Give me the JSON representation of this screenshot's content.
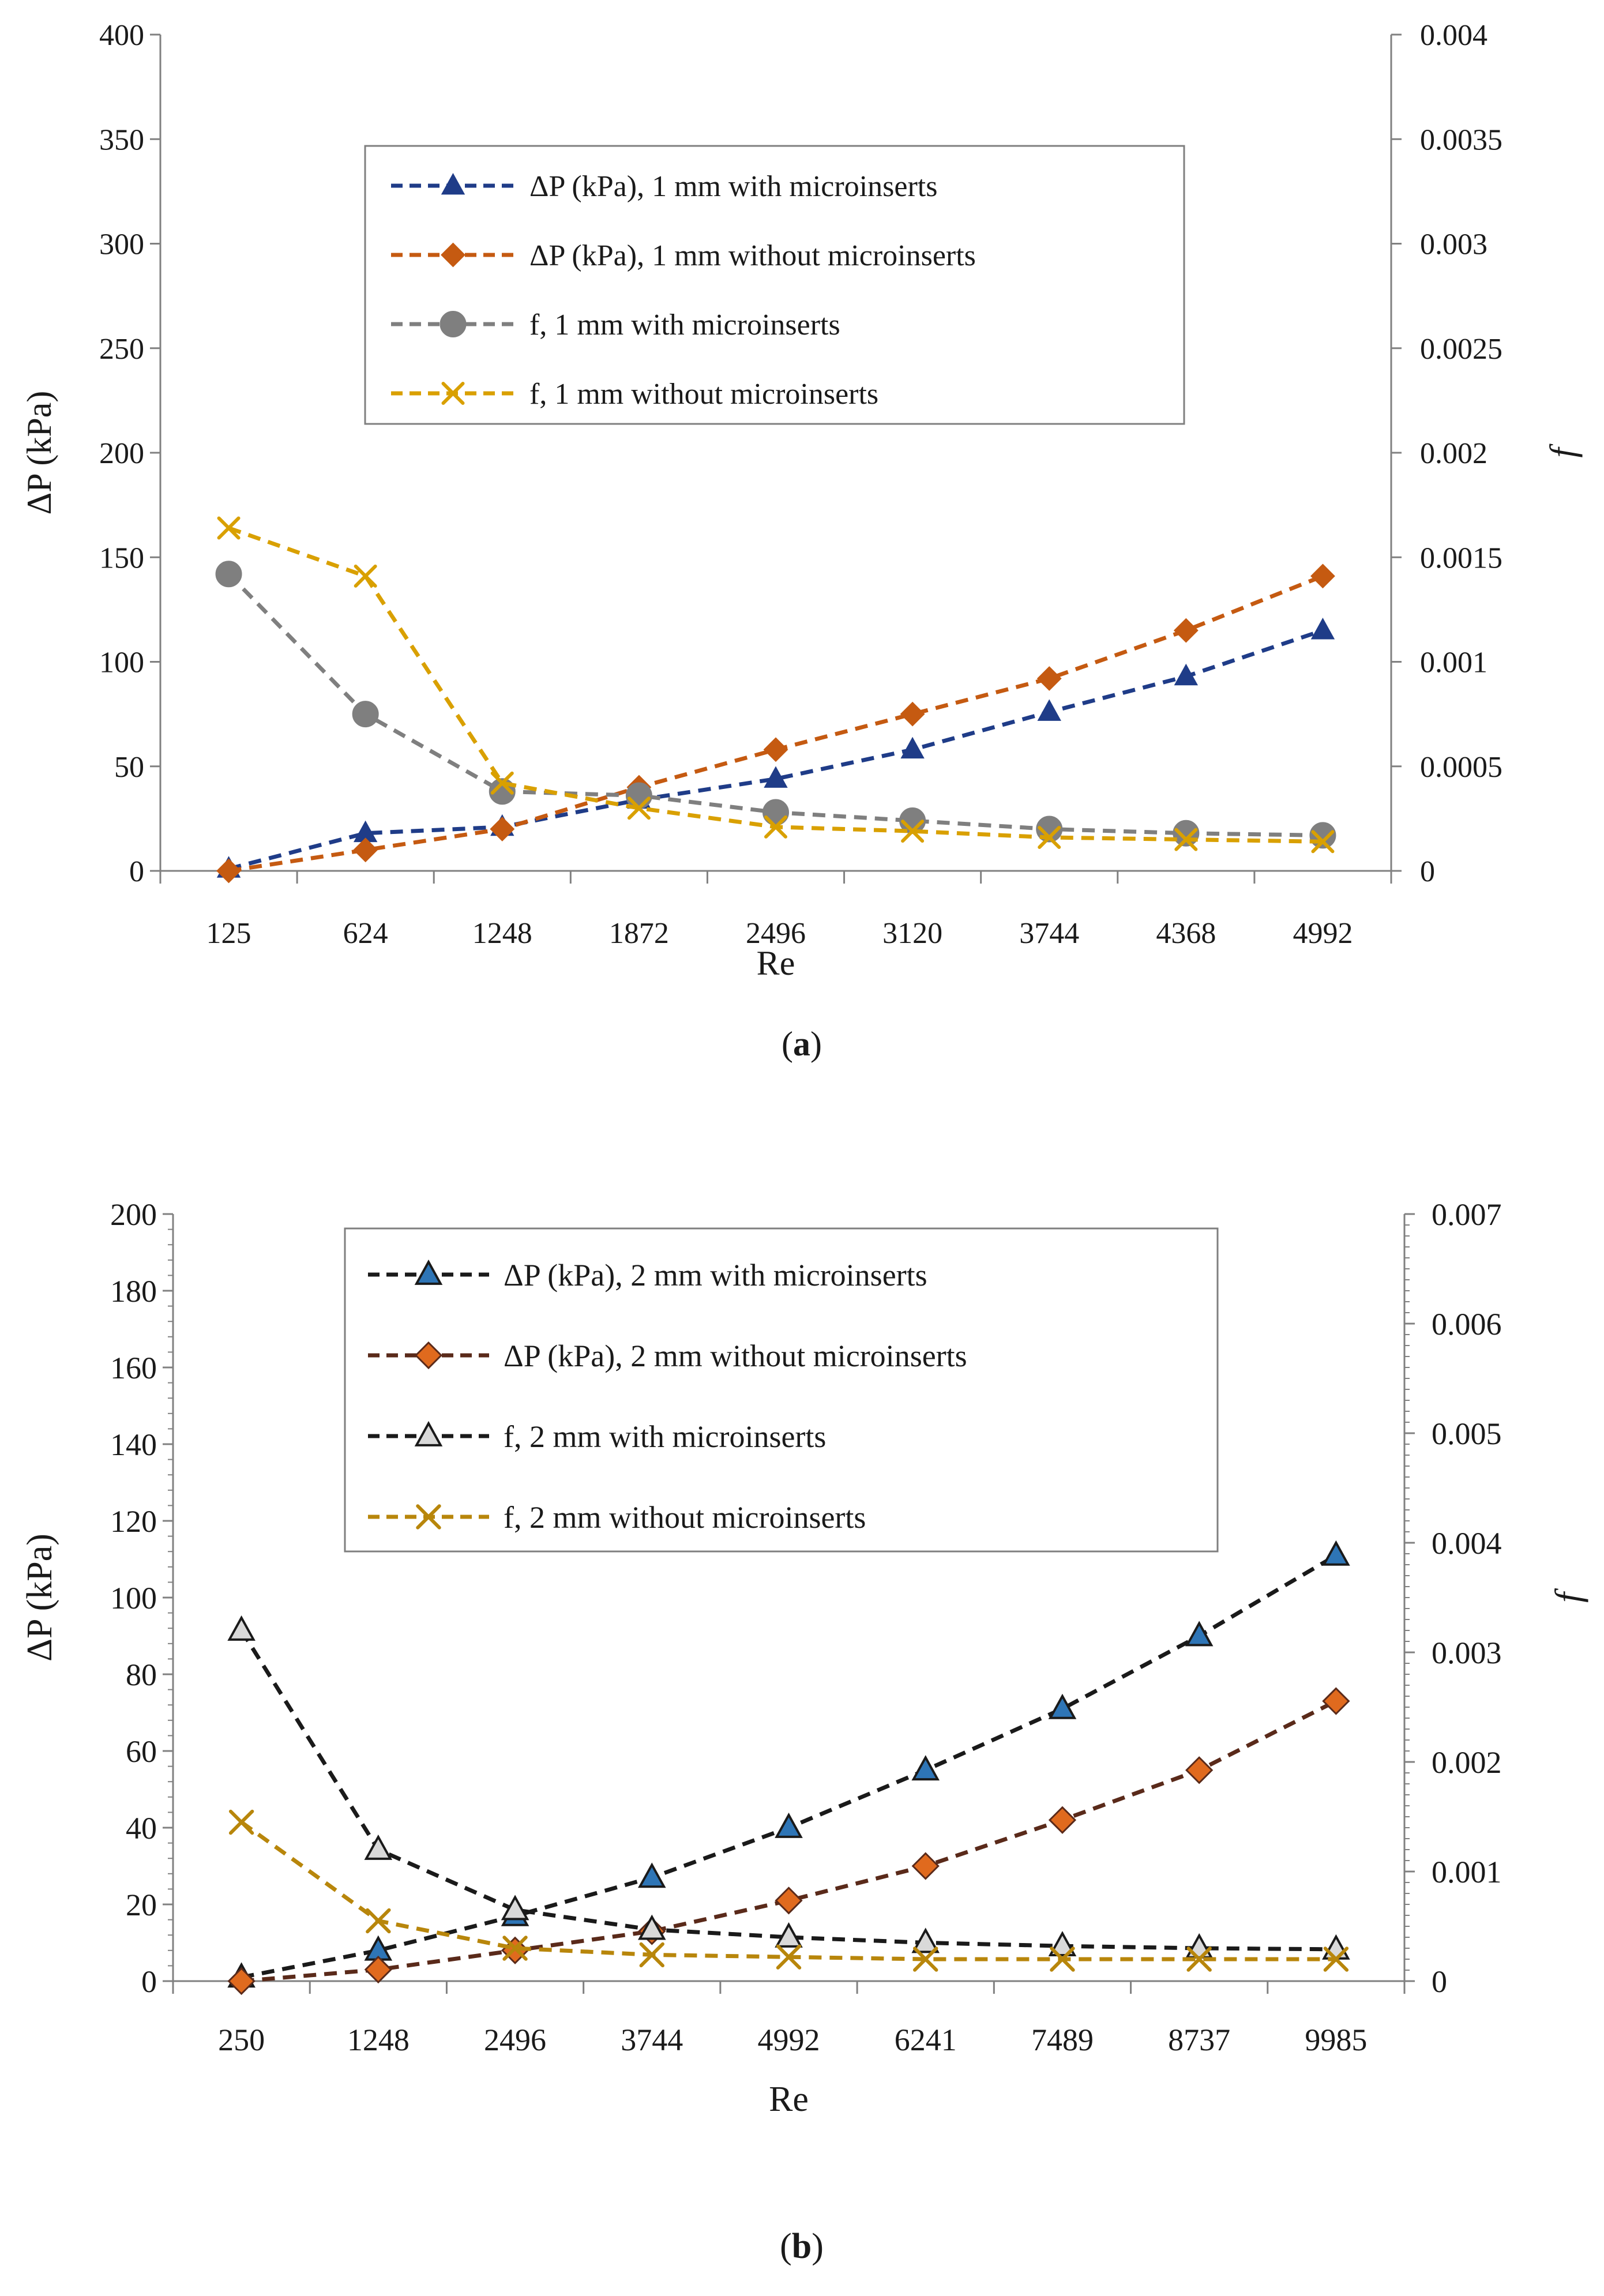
{
  "chart_data": [
    {
      "type": "line",
      "panel_label_parts": [
        "(",
        "a",
        ")"
      ],
      "xlabel": "Re",
      "ylabel": "ΔP (kPa)",
      "y2label": "f",
      "categories": [
        "125",
        "624",
        "1248",
        "1872",
        "2496",
        "3120",
        "3744",
        "4368",
        "4992"
      ],
      "ylim": [
        0,
        400
      ],
      "yticks": [
        "0",
        "50",
        "100",
        "150",
        "200",
        "250",
        "300",
        "350",
        "400"
      ],
      "y2lim": [
        0,
        0.004
      ],
      "y2ticks": [
        "0",
        "0.0005",
        "0.001",
        "0.0015",
        "0.002",
        "0.0025",
        "0.003",
        "0.0035",
        "0.004"
      ],
      "legend_position": "top-center",
      "series": [
        {
          "name": "ΔP (kPa), 1 mm with microinserts",
          "axis": "left",
          "marker": "triangle",
          "color": "#1f3c88",
          "values": [
            1,
            18,
            21,
            34,
            44,
            58,
            76,
            93,
            115
          ]
        },
        {
          "name": "ΔP (kPa), 1 mm without microinserts",
          "axis": "left",
          "marker": "diamond",
          "color": "#c55a11",
          "values": [
            0,
            10,
            20,
            40,
            58,
            75,
            92,
            115,
            141
          ]
        },
        {
          "name": "f, 1 mm with microinserts",
          "axis": "right",
          "marker": "circle",
          "color": "#7f7f7f",
          "values": [
            0.00142,
            0.00075,
            0.00038,
            0.00036,
            0.00028,
            0.00024,
            0.0002,
            0.00018,
            0.00017
          ]
        },
        {
          "name": "f, 1 mm without microinserts",
          "axis": "right",
          "marker": "x",
          "color": "#d9a000",
          "values": [
            0.00164,
            0.00141,
            0.00042,
            0.0003,
            0.00021,
            0.00019,
            0.00016,
            0.00015,
            0.00014
          ]
        }
      ]
    },
    {
      "type": "line",
      "panel_label_parts": [
        "(",
        "b",
        ")"
      ],
      "xlabel": "Re",
      "ylabel": "ΔP (kPa)",
      "y2label": "f",
      "categories": [
        "250",
        "1248",
        "2496",
        "3744",
        "4992",
        "6241",
        "7489",
        "8737",
        "9985"
      ],
      "ylim": [
        0,
        200
      ],
      "yticks": [
        "0",
        "20",
        "40",
        "60",
        "80",
        "100",
        "120",
        "140",
        "160",
        "180",
        "200"
      ],
      "y2lim": [
        0,
        0.007
      ],
      "y2ticks": [
        "0",
        "0.001",
        "0.002",
        "0.003",
        "0.004",
        "0.005",
        "0.006",
        "0.007"
      ],
      "legend_position": "top-center",
      "series": [
        {
          "name": "ΔP (kPa), 2 mm with microinserts",
          "axis": "left",
          "marker": "triangle",
          "color": "#1a1a1a",
          "marker_fill": "#2e75b6",
          "values": [
            1,
            8,
            17,
            27,
            40,
            55,
            71,
            90,
            111
          ]
        },
        {
          "name": "ΔP (kPa), 2 mm without microinserts",
          "axis": "left",
          "marker": "diamond",
          "color": "#5a2a1a",
          "marker_fill": "#e06a1e",
          "values": [
            0,
            3,
            8,
            13,
            21,
            30,
            42,
            55,
            73
          ]
        },
        {
          "name": "f, 2 mm with microinserts",
          "axis": "right",
          "marker": "triangle",
          "color": "#1a1a1a",
          "marker_fill": "#d9d9d9",
          "values": [
            0.0032,
            0.0012,
            0.00065,
            0.00047,
            0.0004,
            0.00035,
            0.00032,
            0.0003,
            0.00029
          ]
        },
        {
          "name": "f, 2 mm without microinserts",
          "axis": "right",
          "marker": "x",
          "color": "#b8860b",
          "values": [
            0.00145,
            0.00055,
            0.0003,
            0.00024,
            0.00022,
            0.0002,
            0.0002,
            0.0002,
            0.0002
          ]
        }
      ]
    }
  ]
}
